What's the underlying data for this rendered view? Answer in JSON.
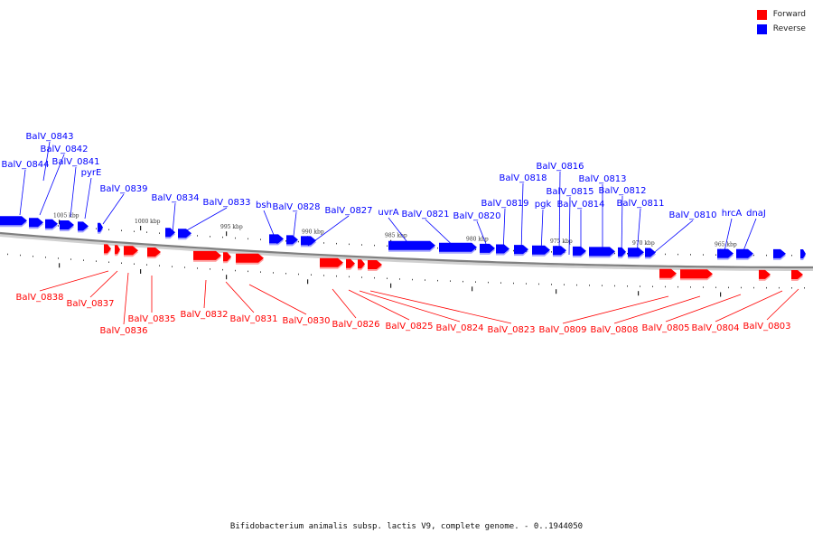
{
  "caption": "Bifidobacterium animalis subsp. lactis V9, complete genome. - 0..1944050",
  "legend": [
    {
      "label": "Forward",
      "color": "#ff0000"
    },
    {
      "label": "Reverse",
      "color": "#0000ff"
    }
  ],
  "colors": {
    "forward": "#ff0000",
    "reverse": "#0000ff",
    "backbone": "#808080"
  },
  "position_labels": [
    "1005 kbp",
    "1000 kbp",
    "995 kbp",
    "990 kbp",
    "985 kbp",
    "980 kbp",
    "975 kbp",
    "970 kbp",
    "965 kbp"
  ],
  "reverse_labels": [
    "BalV_0843",
    "BalV_0842",
    "BalV_0844",
    "BalV_0841",
    "pyrE",
    "BalV_0839",
    "BalV_0834",
    "BalV_0833",
    "bsh",
    "BalV_0828",
    "BalV_0827",
    "uvrA",
    "BalV_0821",
    "BalV_0820",
    "BalV_0819",
    "pgk",
    "BalV_0816",
    "BalV_0818",
    "BalV_0815",
    "BalV_0814",
    "BalV_0813",
    "BalV_0812",
    "BalV_0811",
    "BalV_0810",
    "hrcA",
    "dnaJ"
  ],
  "forward_labels": [
    "BalV_0838",
    "BalV_0837",
    "BalV_0836",
    "BalV_0835",
    "BalV_0832",
    "BalV_0831",
    "BalV_0830",
    "BalV_0826",
    "BalV_0825",
    "BalV_0824",
    "BalV_0823",
    "BalV_0809",
    "BalV_0808",
    "BalV_0805",
    "BalV_0804",
    "BalV_0803"
  ]
}
